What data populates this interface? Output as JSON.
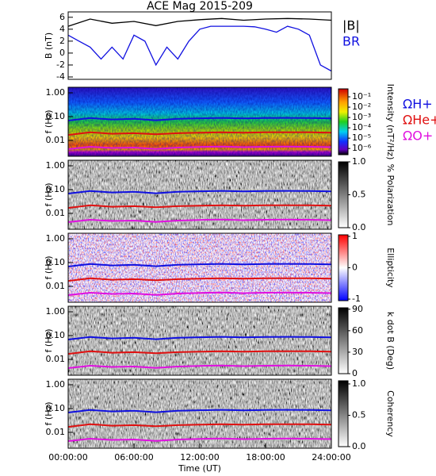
{
  "chart_data": [
    {
      "type": "line",
      "title": "ACE Mag 2015-209",
      "ylabel": "B (nT)",
      "ylim": [
        -4.4,
        6.9
      ],
      "yticks": [
        -4,
        -2,
        0,
        2,
        4,
        6
      ],
      "xlim": [
        0,
        24
      ],
      "legend": true,
      "series": [
        {
          "name": "|B|",
          "color": "#000000",
          "x": [
            0,
            2,
            4,
            6,
            8,
            10,
            12,
            14,
            16,
            18,
            20,
            22,
            24
          ],
          "values": [
            4.5,
            5.7,
            5.0,
            5.3,
            4.6,
            5.3,
            5.6,
            5.8,
            5.5,
            5.7,
            5.8,
            5.7,
            5.5
          ]
        },
        {
          "name": "BR",
          "color": "#1010e0",
          "x": [
            0,
            1,
            2,
            3,
            4,
            5,
            6,
            7,
            8,
            9,
            10,
            11,
            12,
            13,
            14,
            15,
            16,
            17,
            18,
            19,
            20,
            21,
            22,
            23,
            24
          ],
          "values": [
            3,
            2,
            1,
            -1,
            1,
            -1,
            3,
            2,
            -2,
            1,
            -1,
            2,
            4,
            4.5,
            4.5,
            4.5,
            4.5,
            4.4,
            4,
            3.5,
            4.5,
            4,
            3,
            -2,
            -3
          ]
        }
      ]
    },
    {
      "type": "line",
      "ylabel": "f (Hz)",
      "yscale": "log",
      "ylim": [
        0.00215,
        1.71
      ],
      "yticks": [
        {
          "value": 1,
          "label": "1.00"
        },
        {
          "value": 0.1,
          "label": "0.10"
        },
        {
          "value": 0.01,
          "label": "0.01"
        }
      ],
      "xlim": [
        0,
        24
      ],
      "legend": true,
      "colorbar": {
        "label": "Intensity (nT²/Hz)",
        "scale": "log",
        "lim": [
          2.5e-07,
          0.59
        ],
        "ticks": [
          {
            "value": 0.1,
            "label": "10⁻¹"
          },
          {
            "value": 0.01,
            "label": "10⁻²"
          },
          {
            "value": 0.001,
            "label": "10⁻³"
          },
          {
            "value": 0.0001,
            "label": "10⁻⁴"
          },
          {
            "value": 1e-05,
            "label": "10⁻⁵"
          },
          {
            "value": 1e-06,
            "label": "10⁻⁶"
          }
        ],
        "style": "spectral"
      },
      "series": [
        {
          "name": "ΩH+",
          "color": "#1010e0",
          "x": [
            0,
            2,
            4,
            6,
            8,
            10,
            12,
            14,
            16,
            18,
            20,
            22,
            24
          ],
          "values": [
            0.068,
            0.087,
            0.076,
            0.081,
            0.07,
            0.081,
            0.085,
            0.088,
            0.084,
            0.087,
            0.088,
            0.087,
            0.084
          ]
        },
        {
          "name": "ΩHe+",
          "color": "#e01010",
          "x": [
            0,
            2,
            4,
            6,
            8,
            10,
            12,
            14,
            16,
            18,
            20,
            22,
            24
          ],
          "values": [
            0.017,
            0.022,
            0.019,
            0.02,
            0.018,
            0.02,
            0.021,
            0.022,
            0.021,
            0.022,
            0.022,
            0.022,
            0.021
          ]
        },
        {
          "name": "ΩO+",
          "color": "#e010e0",
          "x": [
            0,
            2,
            4,
            6,
            8,
            10,
            12,
            14,
            16,
            18,
            20,
            22,
            24
          ],
          "values": [
            0.0043,
            0.0054,
            0.0048,
            0.005,
            0.0044,
            0.005,
            0.0053,
            0.0055,
            0.0052,
            0.0054,
            0.0055,
            0.0054,
            0.0052
          ]
        }
      ]
    },
    {
      "type": "line",
      "ylabel": "f (Hz)",
      "yscale": "log",
      "ylim": [
        0.00215,
        1.71
      ],
      "yticks": [
        {
          "value": 1,
          "label": "1.00"
        },
        {
          "value": 0.1,
          "label": "0.10"
        },
        {
          "value": 0.01,
          "label": "0.01"
        }
      ],
      "xlim": [
        0,
        24
      ],
      "colorbar": {
        "label": "% Polarization",
        "lim": [
          0,
          1
        ],
        "ticks": [
          {
            "value": 0,
            "label": "0.0"
          },
          {
            "value": 0.5,
            "label": "0.5"
          },
          {
            "value": 1,
            "label": "1.0"
          }
        ],
        "style": "gray"
      },
      "series": [
        {
          "color": "#1010e0",
          "x": [
            0,
            2,
            4,
            6,
            8,
            10,
            12,
            14,
            16,
            18,
            20,
            22,
            24
          ],
          "values": [
            0.068,
            0.087,
            0.076,
            0.081,
            0.07,
            0.081,
            0.085,
            0.088,
            0.084,
            0.087,
            0.088,
            0.087,
            0.084
          ]
        },
        {
          "color": "#e01010",
          "x": [
            0,
            2,
            4,
            6,
            8,
            10,
            12,
            14,
            16,
            18,
            20,
            22,
            24
          ],
          "values": [
            0.017,
            0.022,
            0.019,
            0.02,
            0.018,
            0.02,
            0.021,
            0.022,
            0.021,
            0.022,
            0.022,
            0.022,
            0.021
          ]
        },
        {
          "color": "#e010e0",
          "x": [
            0,
            2,
            4,
            6,
            8,
            10,
            12,
            14,
            16,
            18,
            20,
            22,
            24
          ],
          "values": [
            0.0043,
            0.0054,
            0.0048,
            0.005,
            0.0044,
            0.005,
            0.0053,
            0.0055,
            0.0052,
            0.0054,
            0.0055,
            0.0054,
            0.0052
          ]
        }
      ]
    },
    {
      "type": "line",
      "ylabel": "f (Hz)",
      "yscale": "log",
      "ylim": [
        0.00215,
        1.71
      ],
      "yticks": [
        {
          "value": 1,
          "label": "1.00"
        },
        {
          "value": 0.1,
          "label": "0.10"
        },
        {
          "value": 0.01,
          "label": "0.01"
        }
      ],
      "xlim": [
        0,
        24
      ],
      "colorbar": {
        "label": "Ellipticity",
        "lim": [
          -1.05,
          1.05
        ],
        "ticks": [
          -1,
          0,
          1
        ],
        "style": "diverging"
      },
      "series": [
        {
          "color": "#1010e0",
          "x": [
            0,
            2,
            4,
            6,
            8,
            10,
            12,
            14,
            16,
            18,
            20,
            22,
            24
          ],
          "values": [
            0.068,
            0.087,
            0.076,
            0.081,
            0.07,
            0.081,
            0.085,
            0.088,
            0.084,
            0.087,
            0.088,
            0.087,
            0.084
          ]
        },
        {
          "color": "#e01010",
          "x": [
            0,
            2,
            4,
            6,
            8,
            10,
            12,
            14,
            16,
            18,
            20,
            22,
            24
          ],
          "values": [
            0.017,
            0.022,
            0.019,
            0.02,
            0.018,
            0.02,
            0.021,
            0.022,
            0.021,
            0.022,
            0.022,
            0.022,
            0.021
          ]
        },
        {
          "color": "#e010e0",
          "x": [
            0,
            2,
            4,
            6,
            8,
            10,
            12,
            14,
            16,
            18,
            20,
            22,
            24
          ],
          "values": [
            0.0043,
            0.0054,
            0.0048,
            0.005,
            0.0044,
            0.005,
            0.0053,
            0.0055,
            0.0052,
            0.0054,
            0.0055,
            0.0054,
            0.0052
          ]
        }
      ]
    },
    {
      "type": "line",
      "ylabel": "f (Hz)",
      "yscale": "log",
      "ylim": [
        0.00215,
        1.71
      ],
      "yticks": [
        {
          "value": 1,
          "label": "1.00"
        },
        {
          "value": 0.1,
          "label": "0.10"
        },
        {
          "value": 0.01,
          "label": "0.01"
        }
      ],
      "xlim": [
        0,
        24
      ],
      "colorbar": {
        "label": "k dot B (Deg)",
        "lim": [
          0,
          92
        ],
        "ticks": [
          0,
          30,
          60,
          90
        ],
        "style": "gray"
      },
      "series": [
        {
          "color": "#1010e0",
          "x": [
            0,
            2,
            4,
            6,
            8,
            10,
            12,
            14,
            16,
            18,
            20,
            22,
            24
          ],
          "values": [
            0.068,
            0.087,
            0.076,
            0.081,
            0.07,
            0.081,
            0.085,
            0.088,
            0.084,
            0.087,
            0.088,
            0.087,
            0.084
          ]
        },
        {
          "color": "#e01010",
          "x": [
            0,
            2,
            4,
            6,
            8,
            10,
            12,
            14,
            16,
            18,
            20,
            22,
            24
          ],
          "values": [
            0.017,
            0.022,
            0.019,
            0.02,
            0.018,
            0.02,
            0.021,
            0.022,
            0.021,
            0.022,
            0.022,
            0.022,
            0.021
          ]
        },
        {
          "color": "#e010e0",
          "x": [
            0,
            2,
            4,
            6,
            8,
            10,
            12,
            14,
            16,
            18,
            20,
            22,
            24
          ],
          "values": [
            0.0043,
            0.0054,
            0.0048,
            0.005,
            0.0044,
            0.005,
            0.0053,
            0.0055,
            0.0052,
            0.0054,
            0.0055,
            0.0054,
            0.0052
          ]
        }
      ]
    },
    {
      "type": "line",
      "ylabel": "f (Hz)",
      "yscale": "log",
      "ylim": [
        0.00215,
        1.71
      ],
      "yticks": [
        {
          "value": 1,
          "label": "1.00"
        },
        {
          "value": 0.1,
          "label": "0.10"
        },
        {
          "value": 0.01,
          "label": "0.01"
        }
      ],
      "xlim": [
        0,
        24
      ],
      "xlabel": "Time (UT)",
      "xticks": [
        {
          "value": 0,
          "label": "00:00:00"
        },
        {
          "value": 6,
          "label": "06:00:00"
        },
        {
          "value": 12,
          "label": "12:00:00"
        },
        {
          "value": 18,
          "label": "18:00:00"
        },
        {
          "value": 24,
          "label": "24:00:00"
        }
      ],
      "colorbar": {
        "label": "Coherency",
        "lim": [
          0,
          1.05
        ],
        "ticks": [
          {
            "value": 0,
            "label": "0.0"
          },
          {
            "value": 0.5,
            "label": "0.5"
          },
          {
            "value": 1,
            "label": "1.0"
          }
        ],
        "style": "gray"
      },
      "series": [
        {
          "color": "#1010e0",
          "x": [
            0,
            2,
            4,
            6,
            8,
            10,
            12,
            14,
            16,
            18,
            20,
            22,
            24
          ],
          "values": [
            0.068,
            0.087,
            0.076,
            0.081,
            0.07,
            0.081,
            0.085,
            0.088,
            0.084,
            0.087,
            0.088,
            0.087,
            0.084
          ]
        },
        {
          "color": "#e01010",
          "x": [
            0,
            2,
            4,
            6,
            8,
            10,
            12,
            14,
            16,
            18,
            20,
            22,
            24
          ],
          "values": [
            0.017,
            0.022,
            0.019,
            0.02,
            0.018,
            0.02,
            0.021,
            0.022,
            0.021,
            0.022,
            0.022,
            0.022,
            0.021
          ]
        },
        {
          "color": "#e010e0",
          "x": [
            0,
            2,
            4,
            6,
            8,
            10,
            12,
            14,
            16,
            18,
            20,
            22,
            24
          ],
          "values": [
            0.0043,
            0.0054,
            0.0048,
            0.005,
            0.0044,
            0.005,
            0.0053,
            0.0055,
            0.0052,
            0.0054,
            0.0055,
            0.0054,
            0.0052
          ]
        }
      ]
    }
  ]
}
